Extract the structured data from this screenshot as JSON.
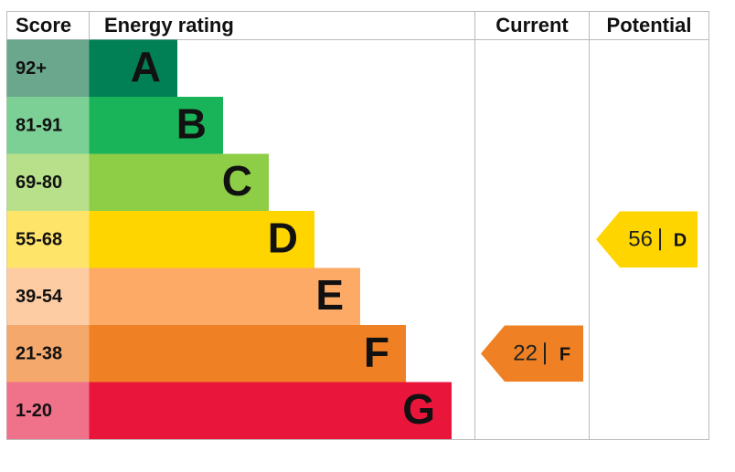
{
  "chart_data": {
    "type": "epc",
    "headers": {
      "score": "Score",
      "rating": "Energy rating",
      "current": "Current",
      "potential": "Potential"
    },
    "bands": [
      {
        "score": "92+",
        "letter": "A",
        "color": "#008054",
        "score_color": "#6aa78c"
      },
      {
        "score": "81-91",
        "letter": "B",
        "color": "#19b459",
        "score_color": "#7ccf95"
      },
      {
        "score": "69-80",
        "letter": "C",
        "color": "#8dce46",
        "score_color": "#b8e08a"
      },
      {
        "score": "55-68",
        "letter": "D",
        "color": "#ffd500",
        "score_color": "#ffe46a"
      },
      {
        "score": "39-54",
        "letter": "E",
        "color": "#fcaa65",
        "score_color": "#fdcca3"
      },
      {
        "score": "21-38",
        "letter": "F",
        "color": "#ef8023",
        "score_color": "#f5a86b"
      },
      {
        "score": "1-20",
        "letter": "G",
        "color": "#e9153b",
        "score_color": "#f0718a"
      }
    ],
    "current": {
      "value": 22,
      "rating": "F"
    },
    "potential": {
      "value": 56,
      "rating": "D"
    }
  }
}
